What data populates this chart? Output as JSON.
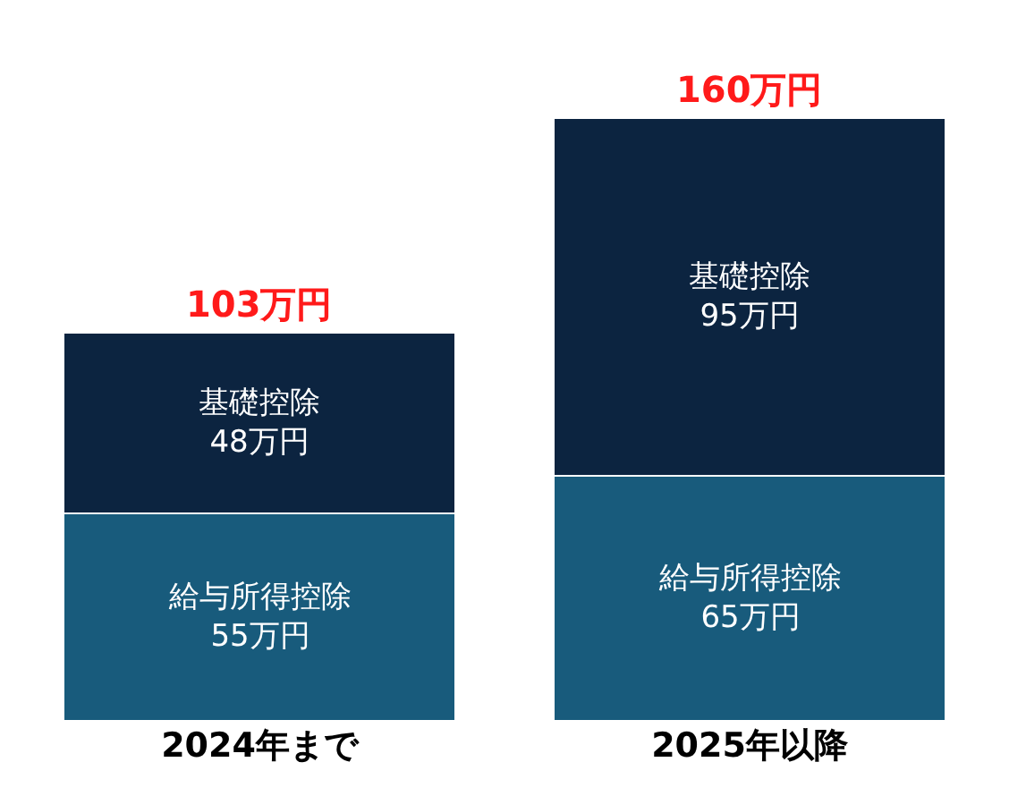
{
  "chart_data": {
    "type": "bar",
    "stacked": true,
    "categories": [
      "2024年まで",
      "2025年以降"
    ],
    "series": [
      {
        "name": "給与所得控除",
        "color": "#185b7c",
        "values": [
          55,
          65
        ],
        "value_labels": [
          "55万円",
          "65万円"
        ]
      },
      {
        "name": "基礎控除",
        "color": "#0c2440",
        "values": [
          48,
          95
        ],
        "value_labels": [
          "48万円",
          "95万円"
        ]
      }
    ],
    "totals": [
      "103万円",
      "160万円"
    ],
    "legend": false
  }
}
